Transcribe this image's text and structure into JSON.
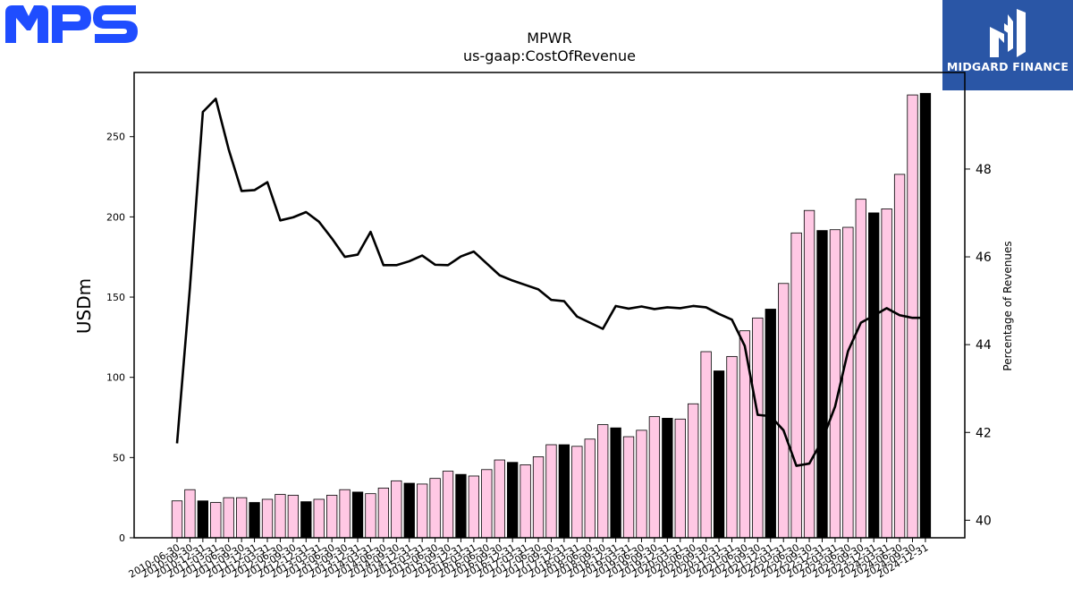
{
  "logos": {
    "left_text": "MPS",
    "right_text": "MIDGARD FINANCE",
    "left_color": "#1f4dff",
    "right_bg": "#2a56a6"
  },
  "chart_data": {
    "type": "bar",
    "title": "MPWR",
    "subtitle": "us-gaap:CostOfRevenue",
    "ylabel": "USDm",
    "y2label": "Percentage of Revenues",
    "ylim": [
      0,
      290
    ],
    "y2lim": [
      39.6,
      50.2
    ],
    "yticks": [
      0,
      50,
      100,
      150,
      200,
      250
    ],
    "y2ticks": [
      40,
      42,
      44,
      46,
      48
    ],
    "bar_colors": {
      "quarter": "#ffc8e4",
      "annual": "#000000"
    },
    "line_color": "#000000",
    "categories": [
      "2010-06-30",
      "2010-09-30",
      "2010-12-31",
      "2011-03-31",
      "2011-06-30",
      "2011-09-30",
      "2011-12-31",
      "2012-03-31",
      "2012-06-30",
      "2012-09-30",
      "2012-12-31",
      "2013-03-31",
      "2013-06-30",
      "2013-09-30",
      "2013-12-31",
      "2014-03-31",
      "2014-06-30",
      "2014-09-30",
      "2014-12-31",
      "2015-03-31",
      "2015-06-30",
      "2015-09-30",
      "2015-12-31",
      "2016-03-31",
      "2016-06-30",
      "2016-09-30",
      "2016-12-31",
      "2017-03-31",
      "2017-06-30",
      "2017-09-30",
      "2017-12-31",
      "2018-03-31",
      "2018-06-30",
      "2018-09-30",
      "2018-12-31",
      "2019-03-31",
      "2019-06-30",
      "2019-09-30",
      "2019-12-31",
      "2020-03-31",
      "2020-06-30",
      "2020-09-30",
      "2020-12-31",
      "2021-03-31",
      "2021-06-30",
      "2021-09-30",
      "2021-12-31",
      "2022-03-31",
      "2022-06-30",
      "2022-09-30",
      "2022-12-31",
      "2023-03-31",
      "2023-06-30",
      "2023-09-30",
      "2023-12-31",
      "2024-03-31",
      "2024-06-30",
      "2024-09-30",
      "2024-12-31"
    ],
    "values": [
      23,
      30,
      23,
      22,
      25,
      25,
      22,
      24,
      27,
      26.5,
      22.5,
      24,
      26.5,
      30,
      28.5,
      27.5,
      31,
      35.5,
      34,
      33.5,
      37,
      41.5,
      39.5,
      38.5,
      42.5,
      48.5,
      47,
      45.5,
      50.5,
      58,
      58,
      57,
      61.5,
      70.5,
      68.5,
      63,
      67,
      75.5,
      74.5,
      74,
      83.5,
      116,
      104,
      113,
      129,
      137,
      142.5,
      158.5,
      190,
      204,
      191.5,
      192,
      193.5,
      211,
      202.5,
      205,
      226.5,
      276,
      277
    ],
    "annual": [
      false,
      false,
      true,
      false,
      false,
      false,
      true,
      false,
      false,
      false,
      true,
      false,
      false,
      false,
      true,
      false,
      false,
      false,
      true,
      false,
      false,
      false,
      true,
      false,
      false,
      false,
      true,
      false,
      false,
      false,
      true,
      false,
      false,
      false,
      true,
      false,
      false,
      false,
      true,
      false,
      false,
      false,
      true,
      false,
      false,
      false,
      true,
      false,
      false,
      false,
      true,
      false,
      false,
      false,
      true,
      false,
      false,
      false,
      true
    ],
    "pct_of_revenue": [
      41.75,
      45.3,
      49.3,
      49.6,
      48.45,
      47.5,
      47.52,
      47.7,
      46.83,
      46.9,
      47.02,
      46.8,
      46.42,
      46,
      46.05,
      46.57,
      45.81,
      45.81,
      45.9,
      46.03,
      45.82,
      45.81,
      46.01,
      46.12,
      45.85,
      45.58,
      45.46,
      45.36,
      45.26,
      45.02,
      44.99,
      44.64,
      44.5,
      44.36,
      44.88,
      44.82,
      44.87,
      44.81,
      44.85,
      44.83,
      44.88,
      44.85,
      44.7,
      44.57,
      43.97,
      42.4,
      42.37,
      42.05,
      41.24,
      41.29,
      41.82,
      42.59,
      43.85,
      44.5,
      44.66,
      44.83,
      44.67,
      44.61,
      44.61
    ]
  }
}
